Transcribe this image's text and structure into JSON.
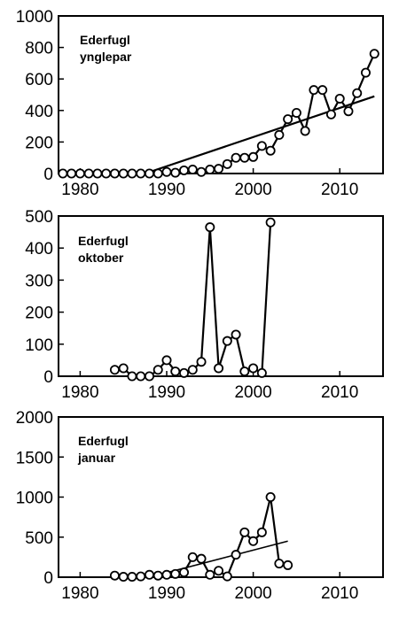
{
  "chart_data": [
    {
      "type": "line",
      "title": "Ederfugl",
      "subtitle": "ynglepar",
      "xlim": [
        1977.5,
        2015
      ],
      "ylim": [
        0,
        1000
      ],
      "x_ticks": [
        1980,
        1990,
        2000,
        2010
      ],
      "y_ticks": [
        0,
        200,
        400,
        600,
        800,
        1000
      ],
      "grid": false,
      "series": [
        {
          "x": [
            1978,
            1979,
            1980,
            1981,
            1982,
            1983,
            1984,
            1985,
            1986,
            1987,
            1988,
            1989,
            1990,
            1991,
            1992,
            1993,
            1994,
            1995,
            1996,
            1997,
            1998,
            1999,
            2000,
            2001,
            2002,
            2003,
            2004,
            2005,
            2006,
            2007,
            2008,
            2009,
            2010,
            2011,
            2012,
            2013,
            2014
          ],
          "y": [
            0,
            0,
            0,
            0,
            0,
            0,
            0,
            0,
            0,
            0,
            0,
            0,
            10,
            5,
            20,
            25,
            10,
            25,
            30,
            60,
            100,
            100,
            105,
            175,
            145,
            245,
            345,
            385,
            270,
            530,
            530,
            375,
            475,
            395,
            510,
            640,
            760
          ]
        }
      ],
      "trendline": {
        "x": [
          1987.5,
          2014
        ],
        "y": [
          0,
          490
        ]
      }
    },
    {
      "type": "line",
      "title": "Ederfugl",
      "subtitle": "oktober",
      "xlim": [
        1977.5,
        2015
      ],
      "ylim": [
        0,
        500
      ],
      "x_ticks": [
        1980,
        1990,
        2000,
        2010
      ],
      "y_ticks": [
        0,
        100,
        200,
        300,
        400,
        500
      ],
      "grid": false,
      "series": [
        {
          "x": [
            1984,
            1985,
            1986,
            1987,
            1988,
            1989,
            1990,
            1991,
            1992,
            1993,
            1994,
            1995,
            1996,
            1997,
            1998,
            1999,
            2000,
            2001,
            2002
          ],
          "y": [
            20,
            25,
            0,
            0,
            0,
            20,
            50,
            15,
            10,
            20,
            45,
            465,
            25,
            110,
            130,
            15,
            25,
            10,
            480
          ]
        }
      ]
    },
    {
      "type": "line",
      "title": "Ederfugl",
      "subtitle": "januar",
      "xlim": [
        1977.5,
        2015
      ],
      "ylim": [
        0,
        2000
      ],
      "x_ticks": [
        1980,
        1990,
        2000,
        2010
      ],
      "y_ticks": [
        0,
        500,
        1000,
        1500,
        2000
      ],
      "grid": false,
      "series": [
        {
          "x": [
            1984,
            1985,
            1986,
            1987,
            1988,
            1989,
            1990,
            1991,
            1992,
            1993,
            1994,
            1995,
            1996,
            1997,
            1998,
            1999,
            2000,
            2001,
            2002,
            2003,
            2004
          ],
          "y": [
            20,
            5,
            5,
            10,
            30,
            20,
            30,
            40,
            60,
            250,
            230,
            30,
            80,
            10,
            280,
            560,
            450,
            560,
            1000,
            170,
            150
          ]
        }
      ],
      "trendline": {
        "x": [
          1988,
          2004
        ],
        "y": [
          0,
          450
        ]
      }
    }
  ]
}
